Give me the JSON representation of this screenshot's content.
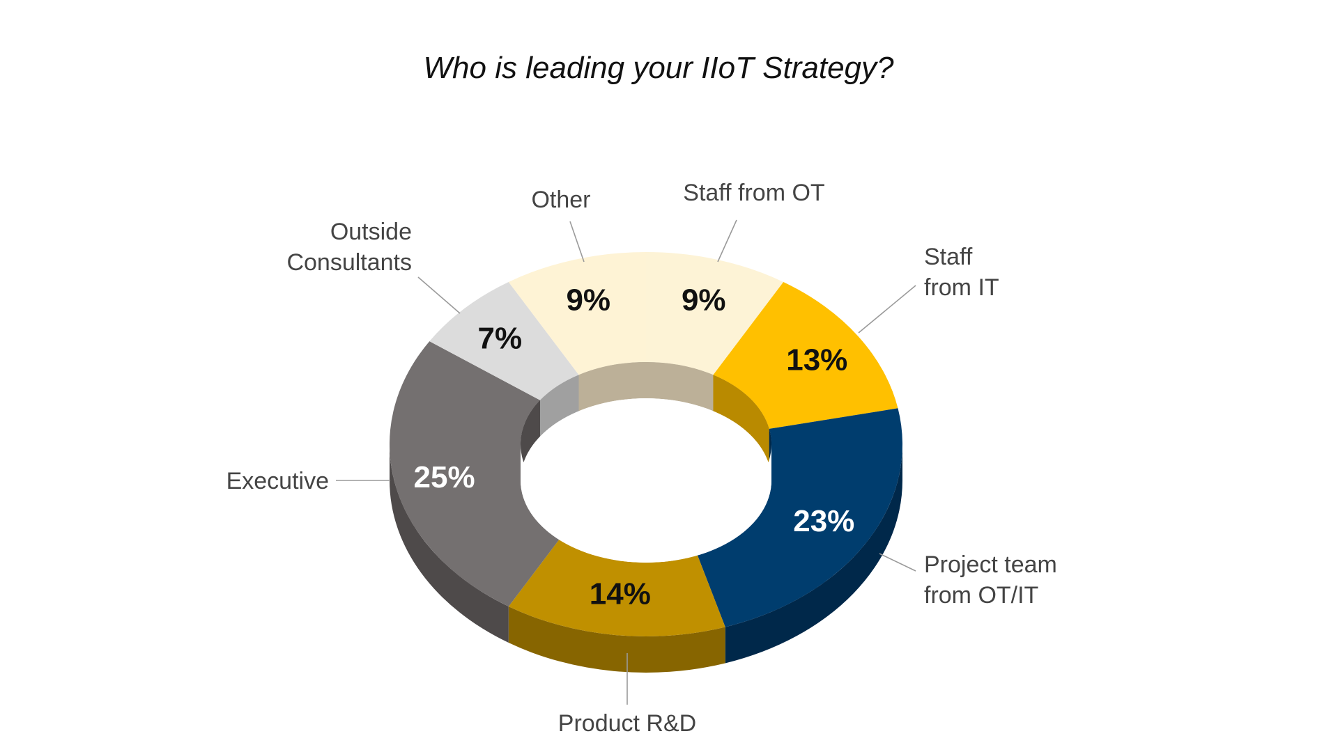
{
  "chart_data": {
    "type": "pie",
    "variant": "donut-3d",
    "title": "Who is leading your IIoT Strategy?",
    "slices": [
      {
        "label": "Staff from OT",
        "value": 9,
        "value_label": "9%",
        "color": "#FDF3D6",
        "side_color": "#BCB098",
        "text_color": "#111111"
      },
      {
        "label": "Staff from IT",
        "value": 13,
        "value_label": "13%",
        "color": "#FFC000",
        "side_color": "#B98A00",
        "text_color": "#111111"
      },
      {
        "label": "Project team from OT/IT",
        "value": 23,
        "value_label": "23%",
        "color": "#003D6E",
        "side_color": "#00284A",
        "text_color": "#FFFFFF"
      },
      {
        "label": "Product R&D",
        "value": 14,
        "value_label": "14%",
        "color": "#C09000",
        "side_color": "#876500",
        "text_color": "#111111"
      },
      {
        "label": "Executive",
        "value": 25,
        "value_label": "25%",
        "color": "#747070",
        "side_color": "#4E4A4A",
        "text_color": "#FFFFFF"
      },
      {
        "label": "Outside Consultants",
        "value": 7,
        "value_label": "7%",
        "color": "#DCDCDC",
        "side_color": "#A0A0A0",
        "text_color": "#111111"
      },
      {
        "label": "Other",
        "value": 9,
        "value_label": "9%",
        "color": "#FEF3D5",
        "side_color": "#BCB098",
        "text_color": "#111111"
      }
    ],
    "legend": "none"
  }
}
